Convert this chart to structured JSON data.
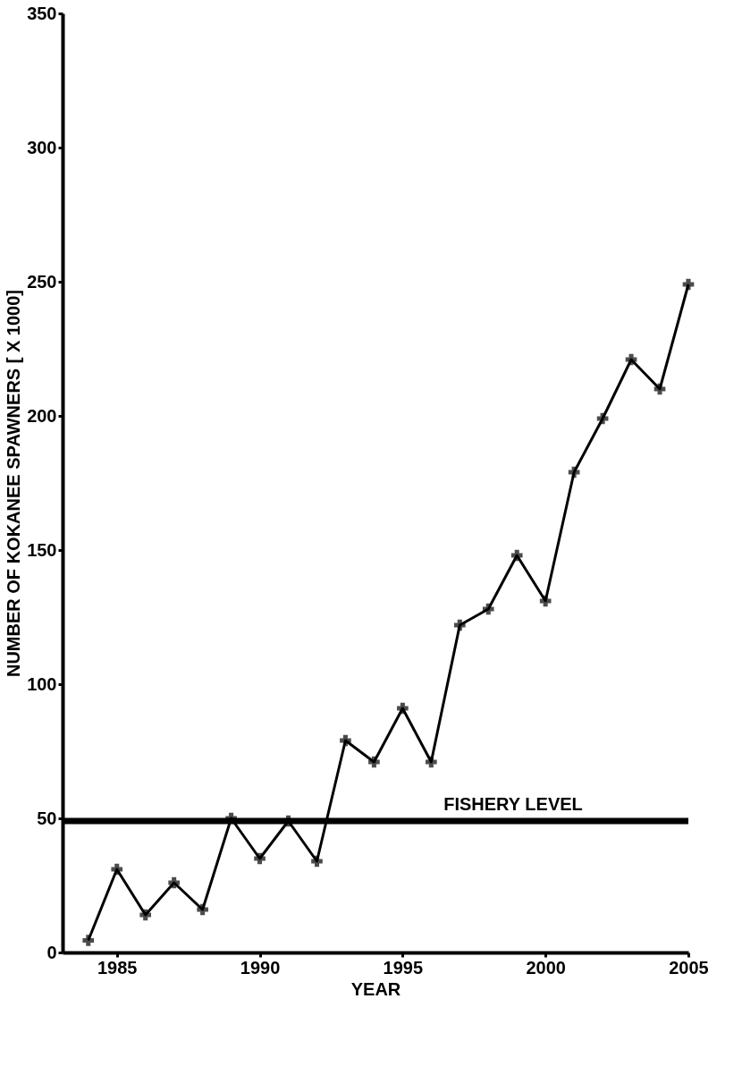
{
  "chart_data": {
    "type": "line",
    "xlabel": "YEAR",
    "ylabel": "NUMBER OF KOKANEE SPAWNERS [ X 1000]",
    "x": [
      1984,
      1985,
      1986,
      1987,
      1988,
      1989,
      1990,
      1991,
      1992,
      1993,
      1994,
      1995,
      1996,
      1997,
      1998,
      1999,
      2000,
      2001,
      2002,
      2003,
      2004,
      2005
    ],
    "series": [
      {
        "color": "#000000",
        "values": [
          4.5,
          31,
          14,
          26,
          16,
          50,
          35,
          49,
          34,
          79,
          71,
          91,
          71,
          122,
          128,
          148,
          131,
          179,
          199,
          221,
          210,
          249
        ]
      }
    ],
    "xlim": [
      1983.1,
      2005
    ],
    "xticks": [
      1985,
      1990,
      1995,
      2000,
      2005
    ],
    "ylim": [
      0,
      350
    ],
    "yticks": [
      0,
      50,
      100,
      150,
      200,
      250,
      300,
      350
    ],
    "ref_lines": [
      {
        "axis": "y",
        "value": 49,
        "label": "FISHERY LEVEL",
        "color": "#000000"
      }
    ],
    "grid": false,
    "marker": "cross",
    "line_style": "solid"
  }
}
